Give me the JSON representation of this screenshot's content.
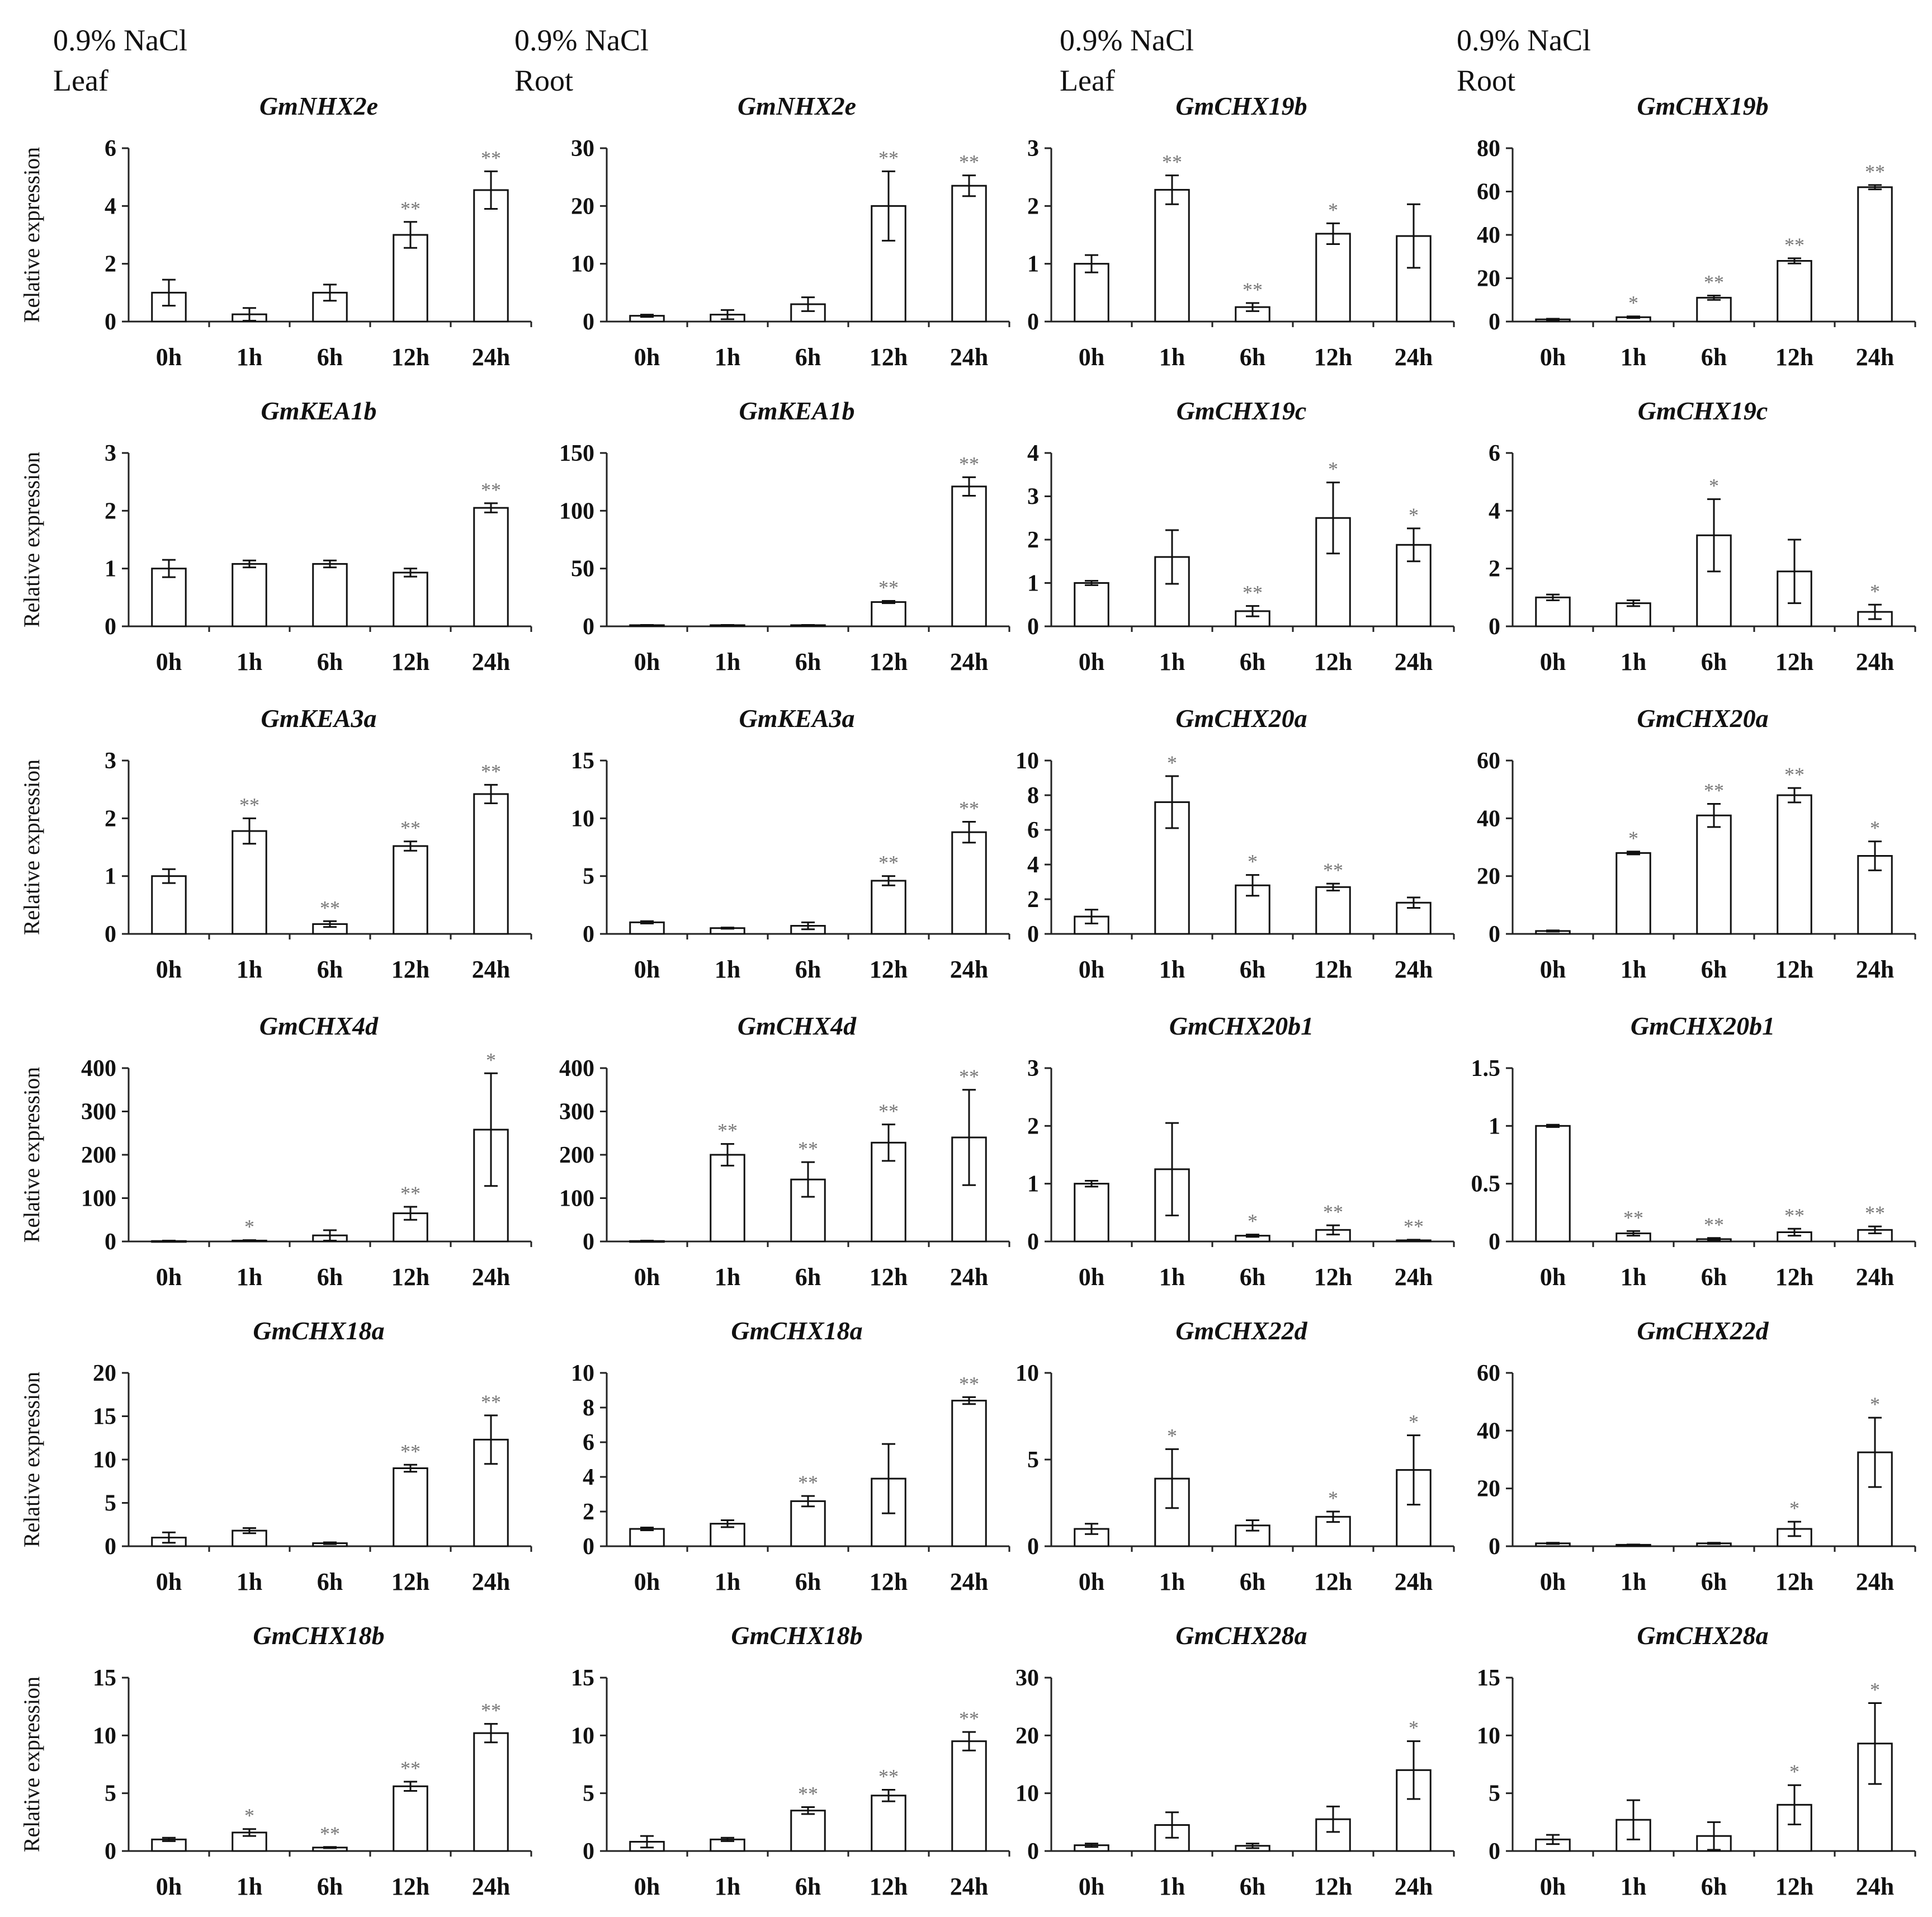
{
  "figure_header": {
    "columns": [
      {
        "treatment": "0.9% NaCl",
        "tissue": "Leaf"
      },
      {
        "treatment": "0.9% NaCl",
        "tissue": "Root"
      },
      {
        "treatment": "0.9% NaCl",
        "tissue": "Leaf"
      },
      {
        "treatment": "0.9% NaCl",
        "tissue": "Root"
      }
    ]
  },
  "chart_data": [
    {
      "type": "bar",
      "title": "GmNHX2e",
      "tissue": "Leaf",
      "ylabel": "Relative expression",
      "categories": [
        "0h",
        "1h",
        "6h",
        "12h",
        "24h"
      ],
      "values": [
        1.0,
        0.25,
        1.0,
        3.0,
        4.55
      ],
      "errors": [
        0.45,
        0.22,
        0.28,
        0.45,
        0.65
      ],
      "significance": [
        "",
        "",
        "",
        "**",
        "**"
      ],
      "ylim": [
        0,
        6
      ],
      "yticks": [
        "0",
        "2",
        "4",
        "6"
      ]
    },
    {
      "type": "bar",
      "title": "GmNHX2e",
      "tissue": "Root",
      "ylabel": "",
      "categories": [
        "0h",
        "1h",
        "6h",
        "12h",
        "24h"
      ],
      "values": [
        1.0,
        1.2,
        3.0,
        20.0,
        23.5
      ],
      "errors": [
        0.2,
        0.8,
        1.2,
        6.0,
        1.8
      ],
      "significance": [
        "",
        "",
        "",
        "**",
        "**"
      ],
      "ylim": [
        0,
        30
      ],
      "yticks": [
        "0",
        "10",
        "20",
        "30"
      ]
    },
    {
      "type": "bar",
      "title": "GmCHX19b",
      "tissue": "Leaf",
      "ylabel": "",
      "categories": [
        "0h",
        "1h",
        "6h",
        "12h",
        "24h"
      ],
      "values": [
        1.0,
        2.28,
        0.25,
        1.52,
        1.48
      ],
      "errors": [
        0.15,
        0.25,
        0.07,
        0.18,
        0.55
      ],
      "significance": [
        "",
        "**",
        "**",
        "*",
        ""
      ],
      "ylim": [
        0,
        3
      ],
      "yticks": [
        "0",
        "1",
        "2",
        "3"
      ]
    },
    {
      "type": "bar",
      "title": "GmCHX19b",
      "tissue": "Root",
      "ylabel": "",
      "categories": [
        "0h",
        "1h",
        "6h",
        "12h",
        "24h"
      ],
      "values": [
        1.0,
        2.0,
        11.0,
        28.0,
        62.0
      ],
      "errors": [
        0.3,
        0.4,
        1.0,
        1.2,
        1.0
      ],
      "significance": [
        "",
        "*",
        "**",
        "**",
        "**"
      ],
      "ylim": [
        0,
        80
      ],
      "yticks": [
        "0",
        "20",
        "40",
        "60",
        "80"
      ]
    },
    {
      "type": "bar",
      "title": "GmKEA1b",
      "tissue": "Leaf",
      "ylabel": "Relative expression",
      "categories": [
        "0h",
        "1h",
        "6h",
        "12h",
        "24h"
      ],
      "values": [
        1.0,
        1.08,
        1.08,
        0.93,
        2.05
      ],
      "errors": [
        0.15,
        0.06,
        0.06,
        0.07,
        0.08
      ],
      "significance": [
        "",
        "",
        "",
        "",
        "**"
      ],
      "ylim": [
        0,
        3
      ],
      "yticks": [
        "0",
        "1",
        "2",
        "3"
      ]
    },
    {
      "type": "bar",
      "title": "GmKEA1b",
      "tissue": "Root",
      "ylabel": "",
      "categories": [
        "0h",
        "1h",
        "6h",
        "12h",
        "24h"
      ],
      "values": [
        1.0,
        1.0,
        1.0,
        21.0,
        121.0
      ],
      "errors": [
        0.2,
        0.2,
        0.2,
        1.0,
        8.0
      ],
      "significance": [
        "",
        "",
        "",
        "**",
        "**"
      ],
      "ylim": [
        0,
        150
      ],
      "yticks": [
        "0",
        "50",
        "100",
        "150"
      ]
    },
    {
      "type": "bar",
      "title": "GmCHX19c",
      "tissue": "Leaf",
      "ylabel": "",
      "categories": [
        "0h",
        "1h",
        "6h",
        "12h",
        "24h"
      ],
      "values": [
        1.0,
        1.6,
        0.35,
        2.5,
        1.88
      ],
      "errors": [
        0.05,
        0.62,
        0.12,
        0.82,
        0.38
      ],
      "significance": [
        "",
        "",
        "**",
        "*",
        "*"
      ],
      "ylim": [
        0,
        4
      ],
      "yticks": [
        "0",
        "1",
        "2",
        "3",
        "4"
      ]
    },
    {
      "type": "bar",
      "title": "GmCHX19c",
      "tissue": "Root",
      "ylabel": "",
      "categories": [
        "0h",
        "1h",
        "6h",
        "12h",
        "24h"
      ],
      "values": [
        1.0,
        0.8,
        3.15,
        1.9,
        0.5
      ],
      "errors": [
        0.1,
        0.1,
        1.25,
        1.1,
        0.25
      ],
      "significance": [
        "",
        "",
        "*",
        "",
        "*"
      ],
      "ylim": [
        0,
        6
      ],
      "yticks": [
        "0",
        "2",
        "4",
        "6"
      ]
    },
    {
      "type": "bar",
      "title": "GmKEA3a",
      "tissue": "Leaf",
      "ylabel": "Relative expression",
      "categories": [
        "0h",
        "1h",
        "6h",
        "12h",
        "24h"
      ],
      "values": [
        1.0,
        1.78,
        0.17,
        1.52,
        2.42
      ],
      "errors": [
        0.12,
        0.22,
        0.05,
        0.08,
        0.16
      ],
      "significance": [
        "",
        "**",
        "**",
        "**",
        "**"
      ],
      "ylim": [
        0,
        3
      ],
      "yticks": [
        "0",
        "1",
        "2",
        "3"
      ]
    },
    {
      "type": "bar",
      "title": "GmKEA3a",
      "tissue": "Root",
      "ylabel": "",
      "categories": [
        "0h",
        "1h",
        "6h",
        "12h",
        "24h"
      ],
      "values": [
        1.0,
        0.5,
        0.7,
        4.6,
        8.8
      ],
      "errors": [
        0.1,
        0.05,
        0.3,
        0.4,
        0.9
      ],
      "significance": [
        "",
        "",
        "",
        "**",
        "**"
      ],
      "ylim": [
        0,
        15
      ],
      "yticks": [
        "0",
        "5",
        "10",
        "15"
      ]
    },
    {
      "type": "bar",
      "title": "GmCHX20a",
      "tissue": "Leaf",
      "ylabel": "",
      "categories": [
        "0h",
        "1h",
        "6h",
        "12h",
        "24h"
      ],
      "values": [
        1.0,
        7.6,
        2.8,
        2.7,
        1.8
      ],
      "errors": [
        0.4,
        1.5,
        0.6,
        0.2,
        0.3
      ],
      "significance": [
        "",
        "*",
        "*",
        "**",
        ""
      ],
      "ylim": [
        0,
        10
      ],
      "yticks": [
        "0",
        "2",
        "4",
        "6",
        "8",
        "10"
      ]
    },
    {
      "type": "bar",
      "title": "GmCHX20a",
      "tissue": "Root",
      "ylabel": "",
      "categories": [
        "0h",
        "1h",
        "6h",
        "12h",
        "24h"
      ],
      "values": [
        1.0,
        28.0,
        41.0,
        48.0,
        27.0
      ],
      "errors": [
        0.2,
        0.5,
        4.0,
        2.5,
        5.0
      ],
      "significance": [
        "",
        "*",
        "**",
        "**",
        "*"
      ],
      "ylim": [
        0,
        60
      ],
      "yticks": [
        "0",
        "20",
        "40",
        "60"
      ]
    },
    {
      "type": "bar",
      "title": "GmCHX4d",
      "tissue": "Leaf",
      "ylabel": "Relative expression",
      "categories": [
        "0h",
        "1h",
        "6h",
        "12h",
        "24h"
      ],
      "values": [
        1.0,
        2.0,
        14.0,
        65.0,
        258.0
      ],
      "errors": [
        1.0,
        1.0,
        12.0,
        15.0,
        130.0
      ],
      "significance": [
        "",
        "*",
        "",
        "**",
        "*"
      ],
      "ylim": [
        0,
        400
      ],
      "yticks": [
        "0",
        "100",
        "200",
        "300",
        "400"
      ]
    },
    {
      "type": "bar",
      "title": "GmCHX4d",
      "tissue": "Root",
      "ylabel": "",
      "categories": [
        "0h",
        "1h",
        "6h",
        "12h",
        "24h"
      ],
      "values": [
        1.0,
        200.0,
        143.0,
        228.0,
        240.0
      ],
      "errors": [
        1.0,
        25.0,
        40.0,
        42.0,
        110.0
      ],
      "significance": [
        "",
        "**",
        "**",
        "**",
        "**"
      ],
      "ylim": [
        0,
        400
      ],
      "yticks": [
        "0",
        "100",
        "200",
        "300",
        "400"
      ]
    },
    {
      "type": "bar",
      "title": "GmCHX20b1",
      "tissue": "Leaf",
      "ylabel": "",
      "categories": [
        "0h",
        "1h",
        "6h",
        "12h",
        "24h"
      ],
      "values": [
        1.0,
        1.25,
        0.1,
        0.2,
        0.02
      ],
      "errors": [
        0.05,
        0.8,
        0.02,
        0.08,
        0.01
      ],
      "significance": [
        "",
        "",
        "*",
        "**",
        "**"
      ],
      "ylim": [
        0,
        3
      ],
      "yticks": [
        "0",
        "1",
        "2",
        "3"
      ]
    },
    {
      "type": "bar",
      "title": "GmCHX20b1",
      "tissue": "Root",
      "ylabel": "",
      "categories": [
        "0h",
        "1h",
        "6h",
        "12h",
        "24h"
      ],
      "values": [
        1.0,
        0.07,
        0.02,
        0.08,
        0.1
      ],
      "errors": [
        0.01,
        0.02,
        0.01,
        0.03,
        0.03
      ],
      "significance": [
        "",
        "**",
        "**",
        "**",
        "**"
      ],
      "ylim": [
        0,
        1.5
      ],
      "yticks": [
        "0",
        "0.5",
        "1",
        "1.5"
      ]
    },
    {
      "type": "bar",
      "title": "GmCHX18a",
      "tissue": "Leaf",
      "ylabel": "Relative expression",
      "categories": [
        "0h",
        "1h",
        "6h",
        "12h",
        "24h"
      ],
      "values": [
        1.0,
        1.8,
        0.35,
        9.0,
        12.3
      ],
      "errors": [
        0.6,
        0.3,
        0.1,
        0.4,
        2.8
      ],
      "significance": [
        "",
        "",
        "",
        "**",
        "**"
      ],
      "ylim": [
        0,
        20
      ],
      "yticks": [
        "0",
        "5",
        "10",
        "15",
        "20"
      ]
    },
    {
      "type": "bar",
      "title": "GmCHX18a",
      "tissue": "Root",
      "ylabel": "",
      "categories": [
        "0h",
        "1h",
        "6h",
        "12h",
        "24h"
      ],
      "values": [
        1.0,
        1.3,
        2.6,
        3.9,
        8.4
      ],
      "errors": [
        0.08,
        0.2,
        0.3,
        2.0,
        0.2
      ],
      "significance": [
        "",
        "",
        "**",
        "",
        "**"
      ],
      "ylim": [
        0,
        10
      ],
      "yticks": [
        "0",
        "2",
        "4",
        "6",
        "8",
        "10"
      ]
    },
    {
      "type": "bar",
      "title": "GmCHX22d",
      "tissue": "Leaf",
      "ylabel": "",
      "categories": [
        "0h",
        "1h",
        "6h",
        "12h",
        "24h"
      ],
      "values": [
        1.0,
        3.9,
        1.2,
        1.7,
        4.4
      ],
      "errors": [
        0.3,
        1.7,
        0.3,
        0.3,
        2.0
      ],
      "significance": [
        "",
        "*",
        "",
        "*",
        "*"
      ],
      "ylim": [
        0,
        10
      ],
      "yticks": [
        "0",
        "5",
        "10"
      ]
    },
    {
      "type": "bar",
      "title": "GmCHX22d",
      "tissue": "Root",
      "ylabel": "",
      "categories": [
        "0h",
        "1h",
        "6h",
        "12h",
        "24h"
      ],
      "values": [
        1.0,
        0.5,
        1.0,
        6.0,
        32.5
      ],
      "errors": [
        0.2,
        0.1,
        0.2,
        2.5,
        12.0
      ],
      "significance": [
        "",
        "",
        "",
        "*",
        "*"
      ],
      "ylim": [
        0,
        60
      ],
      "yticks": [
        "0",
        "20",
        "40",
        "60"
      ]
    },
    {
      "type": "bar",
      "title": "GmCHX18b",
      "tissue": "Leaf",
      "ylabel": "Relative expression",
      "categories": [
        "0h",
        "1h",
        "6h",
        "12h",
        "24h"
      ],
      "values": [
        1.0,
        1.6,
        0.3,
        5.6,
        10.2
      ],
      "errors": [
        0.15,
        0.3,
        0.05,
        0.4,
        0.8
      ],
      "significance": [
        "",
        "*",
        "**",
        "**",
        "**"
      ],
      "ylim": [
        0,
        15
      ],
      "yticks": [
        "0",
        "5",
        "10",
        "15"
      ]
    },
    {
      "type": "bar",
      "title": "GmCHX18b",
      "tissue": "Root",
      "ylabel": "",
      "categories": [
        "0h",
        "1h",
        "6h",
        "12h",
        "24h"
      ],
      "values": [
        0.8,
        1.0,
        3.5,
        4.8,
        9.5
      ],
      "errors": [
        0.5,
        0.15,
        0.3,
        0.5,
        0.8
      ],
      "significance": [
        "",
        "",
        "**",
        "**",
        "**"
      ],
      "ylim": [
        0,
        15
      ],
      "yticks": [
        "0",
        "5",
        "10",
        "15"
      ]
    },
    {
      "type": "bar",
      "title": "GmCHX28a",
      "tissue": "Leaf",
      "ylabel": "",
      "categories": [
        "0h",
        "1h",
        "6h",
        "12h",
        "24h"
      ],
      "values": [
        1.0,
        4.5,
        0.9,
        5.5,
        14.0
      ],
      "errors": [
        0.3,
        2.2,
        0.4,
        2.2,
        5.0
      ],
      "significance": [
        "",
        "",
        "",
        "",
        "*"
      ],
      "ylim": [
        0,
        30
      ],
      "yticks": [
        "0",
        "10",
        "20",
        "30"
      ]
    },
    {
      "type": "bar",
      "title": "GmCHX28a",
      "tissue": "Root",
      "ylabel": "",
      "categories": [
        "0h",
        "1h",
        "6h",
        "12h",
        "24h"
      ],
      "values": [
        1.0,
        2.7,
        1.3,
        4.0,
        9.3
      ],
      "errors": [
        0.4,
        1.7,
        1.2,
        1.7,
        3.5
      ],
      "significance": [
        "",
        "",
        "",
        "*",
        "*"
      ],
      "ylim": [
        0,
        15
      ],
      "yticks": [
        "0",
        "5",
        "10",
        "15"
      ]
    }
  ]
}
